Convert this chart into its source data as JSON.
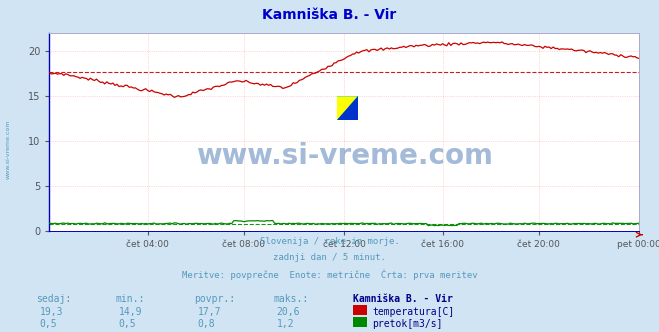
{
  "title": "Kamniška B. - Vir",
  "title_color": "#0000cc",
  "bg_color": "#d0e4f4",
  "plot_bg_color": "#ffffff",
  "grid_color": "#ffb0b0",
  "x_labels": [
    "čet 04:00",
    "čet 08:00",
    "čet 12:00",
    "čet 16:00",
    "čet 20:00",
    "pet 00:00"
  ],
  "x_ticks_frac": [
    0.1667,
    0.3333,
    0.5,
    0.6667,
    0.8333,
    1.0
  ],
  "n_points": 289,
  "ylim": [
    0,
    22
  ],
  "yticks": [
    0,
    5,
    10,
    15,
    20
  ],
  "temp_color": "#cc0000",
  "flow_color": "#008800",
  "avg_temp": 17.7,
  "avg_flow_scaled": 0.733,
  "subtitle_lines": [
    "Slovenija / reke in morje.",
    "zadnji dan / 5 minut.",
    "Meritve: povprečne  Enote: metrične  Črta: prva meritev"
  ],
  "subtitle_color": "#5599bb",
  "table_header": [
    "sedaj:",
    "min.:",
    "povpr.:",
    "maks.:",
    "Kamniška B. - Vir"
  ],
  "table_row1": [
    "19,3",
    "14,9",
    "17,7",
    "20,6",
    "temperatura[C]"
  ],
  "table_row2": [
    "0,5",
    "0,5",
    "0,8",
    "1,2",
    "pretok[m3/s]"
  ],
  "table_color": "#5599bb",
  "table_bold_color": "#000088",
  "watermark_text": "www.si-vreme.com",
  "watermark_color": "#3366aa",
  "side_text": "www.si-vreme.com",
  "side_color": "#5599bb",
  "logo_yellow": "#ffff00",
  "logo_cyan": "#00ccff",
  "logo_blue": "#0033cc",
  "arrow_color": "#cc0000"
}
